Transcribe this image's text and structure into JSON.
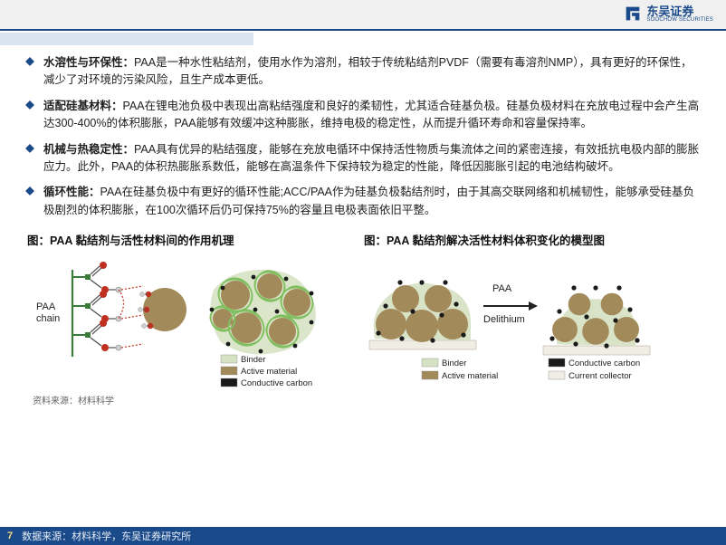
{
  "logo": {
    "cn": "东吴证券",
    "en": "SOOCHOW SECURITIES"
  },
  "accent_color": "#1a4a8a",
  "light_accent": "#d9e4f0",
  "bullets": [
    {
      "lead": "水溶性与环保性：",
      "body": "PAA是一种水性粘结剂，使用水作为溶剂，相较于传统粘结剂PVDF（需要有毒溶剂NMP），具有更好的环保性，减少了对环境的污染风险，且生产成本更低。"
    },
    {
      "lead": "适配硅基材料：",
      "body": "PAA在锂电池负极中表现出高粘结强度和良好的柔韧性，尤其适合硅基负极。硅基负极材料在充放电过程中会产生高达300-400%的体积膨胀，PAA能够有效缓冲这种膨胀，维持电极的稳定性，从而提升循环寿命和容量保持率。"
    },
    {
      "lead": "机械与热稳定性：",
      "body": "PAA具有优异的粘结强度，能够在充放电循环中保持活性物质与集流体之间的紧密连接，有效抵抗电极内部的膨胀应力。此外，PAA的体积热膨胀系数低，能够在高温条件下保持较为稳定的性能，降低因膨胀引起的电池结构破坏。"
    },
    {
      "lead": "循环性能：",
      "body": "PAA在硅基负极中有更好的循环性能;ACC/PAA作为硅基负极黏结剂时，由于其高交联网络和机械韧性，能够承受硅基负极剧烈的体积膨胀，在100次循环后仍可保持75%的容量且电极表面依旧平整。"
    }
  ],
  "figures": {
    "left": {
      "title": "图：PAA 黏结剂与活性材料间的作用机理",
      "labels": {
        "paa_chain": "PAA\nchain",
        "legend": [
          {
            "label": "Binder",
            "color": "#d6e2c4"
          },
          {
            "label": "Active material",
            "color": "#a38a5a"
          },
          {
            "label": "Conductive carbon",
            "color": "#1a1a1a"
          }
        ]
      },
      "colors": {
        "chain": "#3a7a3a",
        "oxygen": "#c03020",
        "hydrogen": "#d0d0d0",
        "bond": "#555555",
        "hbond": "#c03020",
        "particle": "#a38a5a",
        "binder": "#d6e2c4",
        "carbon": "#1a1a1a",
        "outline": "#7fbf5f"
      }
    },
    "right": {
      "title": "图：PAA 黏结剂解决活性材料体积变化的模型图",
      "labels": {
        "arrow": "PAA\nDelithium",
        "legend": [
          {
            "label": "Binder",
            "color": "#d6e2c4"
          },
          {
            "label": "Active material",
            "color": "#a38a5a"
          },
          {
            "label": "Conductive carbon",
            "color": "#1a1a1a"
          },
          {
            "label": "Current collector",
            "color": "#f0ede5"
          }
        ]
      },
      "colors": {
        "particle": "#a38a5a",
        "binder": "#d6e2c4",
        "carbon": "#1a1a1a",
        "collector": "#f0ede5",
        "collector_border": "#b8b0a0"
      }
    },
    "source_small": "资料来源：材料科学"
  },
  "footer": {
    "page": "7",
    "source": "数据来源：材料科学，东吴证券研究所"
  }
}
